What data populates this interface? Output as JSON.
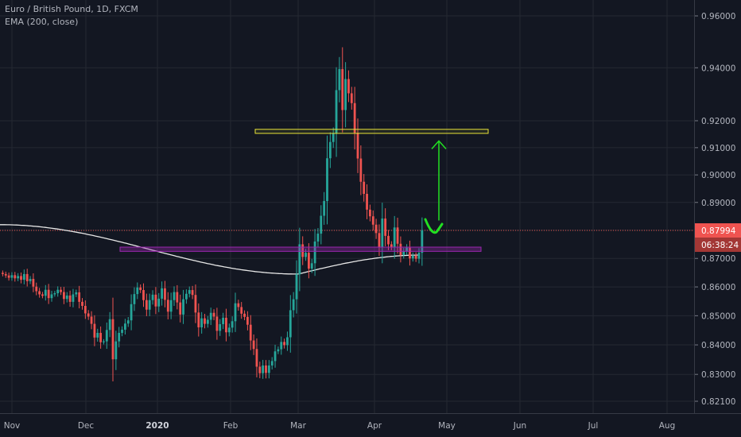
{
  "legend": {
    "title": "Euro / British Pound, 1D, FXCM",
    "indicator": "EMA (200, close)"
  },
  "colors": {
    "background": "#131722",
    "up": "#26a69a",
    "down": "#ef5350",
    "ema": "#e8e8e8",
    "grid": "#242832",
    "last_price_tag": "#ef5350",
    "resistance_box": "#e8e337",
    "support_box": "#9c27b0",
    "arrow": "#22e022"
  },
  "chart_data": {
    "type": "candlestick",
    "symbol": "Euro / British Pound",
    "timeframe": "1D",
    "source": "FXCM",
    "y_axis": {
      "ticks": [
        0.96,
        0.94,
        0.92,
        0.91,
        0.9,
        0.89,
        0.88,
        0.87,
        0.86,
        0.85,
        0.84,
        0.83,
        0.821
      ],
      "tick_labels": [
        "0.96000",
        "0.94000",
        "0.92000",
        "0.91000",
        "0.90000",
        "0.89000",
        "0.88000",
        "0.87000",
        "0.86000",
        "0.85000",
        "0.84000",
        "0.83000",
        "0.82100"
      ],
      "scale": "log"
    },
    "x_axis": {
      "labels": [
        "Nov",
        "Dec",
        "2020",
        "Feb",
        "Mar",
        "Apr",
        "May",
        "Jun",
        "Jul",
        "Aug"
      ],
      "bold_labels": [
        "2020"
      ]
    },
    "last_price": {
      "value": "0.87994",
      "countdown": "06:38:24",
      "price": 0.87994
    },
    "closes": [
      0.8645,
      0.864,
      0.8632,
      0.8641,
      0.863,
      0.8638,
      0.8625,
      0.8645,
      0.862,
      0.8628,
      0.8601,
      0.8585,
      0.8574,
      0.8569,
      0.859,
      0.8561,
      0.8574,
      0.8578,
      0.859,
      0.8582,
      0.8558,
      0.857,
      0.8548,
      0.8574,
      0.8581,
      0.8548,
      0.8534,
      0.8508,
      0.8497,
      0.8472,
      0.8425,
      0.8441,
      0.8409,
      0.8412,
      0.8451,
      0.8488,
      0.8351,
      0.8412,
      0.8441,
      0.8452,
      0.8473,
      0.8484,
      0.854,
      0.8575,
      0.8598,
      0.8589,
      0.8554,
      0.8521,
      0.8554,
      0.8573,
      0.8532,
      0.8559,
      0.8595,
      0.8555,
      0.8514,
      0.8554,
      0.8582,
      0.8546,
      0.8504,
      0.8557,
      0.8576,
      0.8589,
      0.8572,
      0.8511,
      0.846,
      0.8491,
      0.8472,
      0.8486,
      0.851,
      0.8497,
      0.8448,
      0.8471,
      0.8493,
      0.8443,
      0.8459,
      0.8481,
      0.8543,
      0.853,
      0.8507,
      0.8496,
      0.8469,
      0.8415,
      0.8386,
      0.8326,
      0.8304,
      0.833,
      0.8305,
      0.833,
      0.8345,
      0.8378,
      0.8385,
      0.841,
      0.8399,
      0.8426,
      0.8519,
      0.8557,
      0.8644,
      0.875,
      0.8705,
      0.872,
      0.8664,
      0.8683,
      0.876,
      0.8788,
      0.8852,
      0.8905,
      0.9061,
      0.9121,
      0.9153,
      0.9315,
      0.9395,
      0.924,
      0.9357,
      0.9303,
      0.9266,
      0.9155,
      0.906,
      0.8975,
      0.8931,
      0.8874,
      0.885,
      0.882,
      0.879,
      0.874,
      0.8842,
      0.878,
      0.875,
      0.874,
      0.881,
      0.8752,
      0.8712,
      0.8725,
      0.8738,
      0.87,
      0.871,
      0.8699,
      0.872,
      0.88
    ],
    "ema_200": {
      "start": 0.882,
      "min": 0.8645,
      "end": 0.8712
    },
    "resistance_zone": {
      "low": 0.9153,
      "high": 0.9168,
      "start_date": "Feb 10",
      "end_date": "May 15"
    },
    "support_zone": {
      "low": 0.8725,
      "high": 0.874,
      "start_date": "Dec 12",
      "end_date": "May 13"
    },
    "annotation": {
      "type": "upward arrow",
      "from_price": 0.8835,
      "to_price": 0.9125
    }
  }
}
